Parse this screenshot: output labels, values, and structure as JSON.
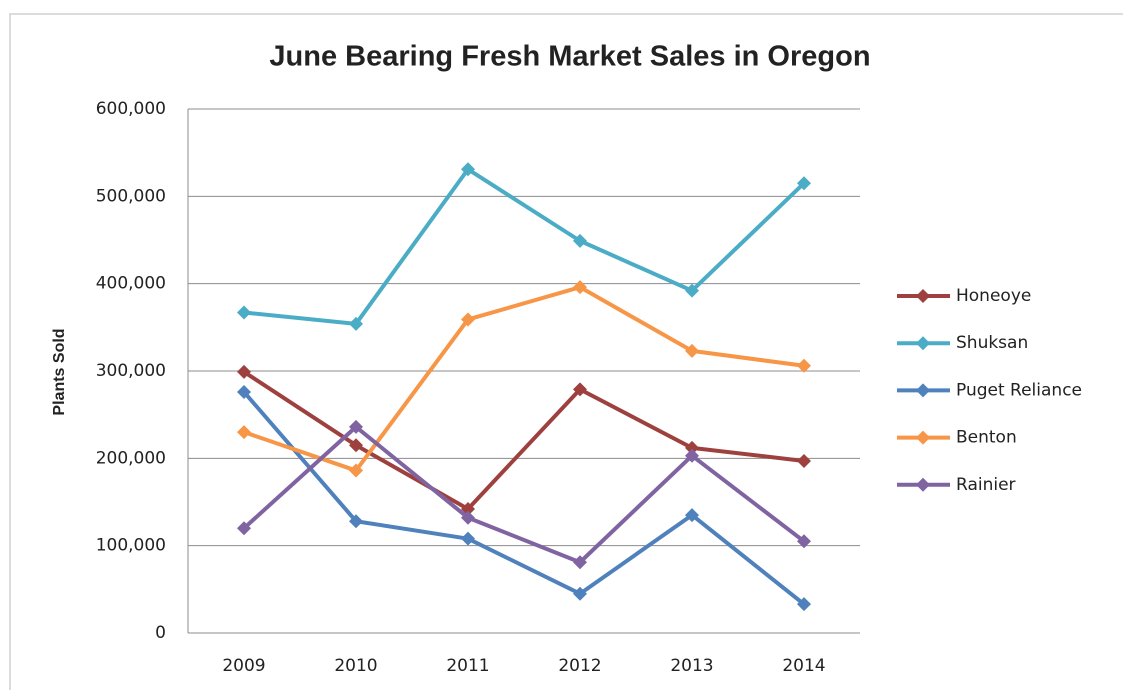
{
  "chart_data": {
    "type": "line",
    "title": "June Bearing Fresh Market Sales in Oregon",
    "y_label": "Plants  Sold",
    "categories": [
      "2009",
      "2010",
      "2011",
      "2012",
      "2013",
      "2014"
    ],
    "series": [
      {
        "name": "Honeoye",
        "color": "#9e413e",
        "values": [
          299000,
          215000,
          142000,
          279000,
          212000,
          197000
        ]
      },
      {
        "name": "Shuksan",
        "color": "#4bacc6",
        "values": [
          367000,
          354000,
          531000,
          449000,
          392000,
          515000
        ]
      },
      {
        "name": "Puget Reliance",
        "color": "#4f81bd",
        "values": [
          276000,
          128000,
          108000,
          45000,
          135000,
          33000
        ]
      },
      {
        "name": "Benton",
        "color": "#f79646",
        "values": [
          230000,
          186000,
          359000,
          396000,
          323000,
          306000
        ]
      },
      {
        "name": "Rainier",
        "color": "#8064a2",
        "values": [
          120000,
          236000,
          132000,
          81000,
          203000,
          105000
        ]
      }
    ],
    "ylim": [
      0,
      600000
    ],
    "yticks": [
      0,
      {
        "value": 100000,
        "label": "100,000"
      },
      {
        "value": 200000,
        "label": "200,000"
      },
      {
        "value": 300000,
        "label": "300,000"
      },
      {
        "value": 400000,
        "label": "400,000"
      },
      {
        "value": 500000,
        "label": "500,000"
      },
      {
        "value": 600000,
        "label": "600,000"
      }
    ],
    "grid": true,
    "legend": "right"
  }
}
